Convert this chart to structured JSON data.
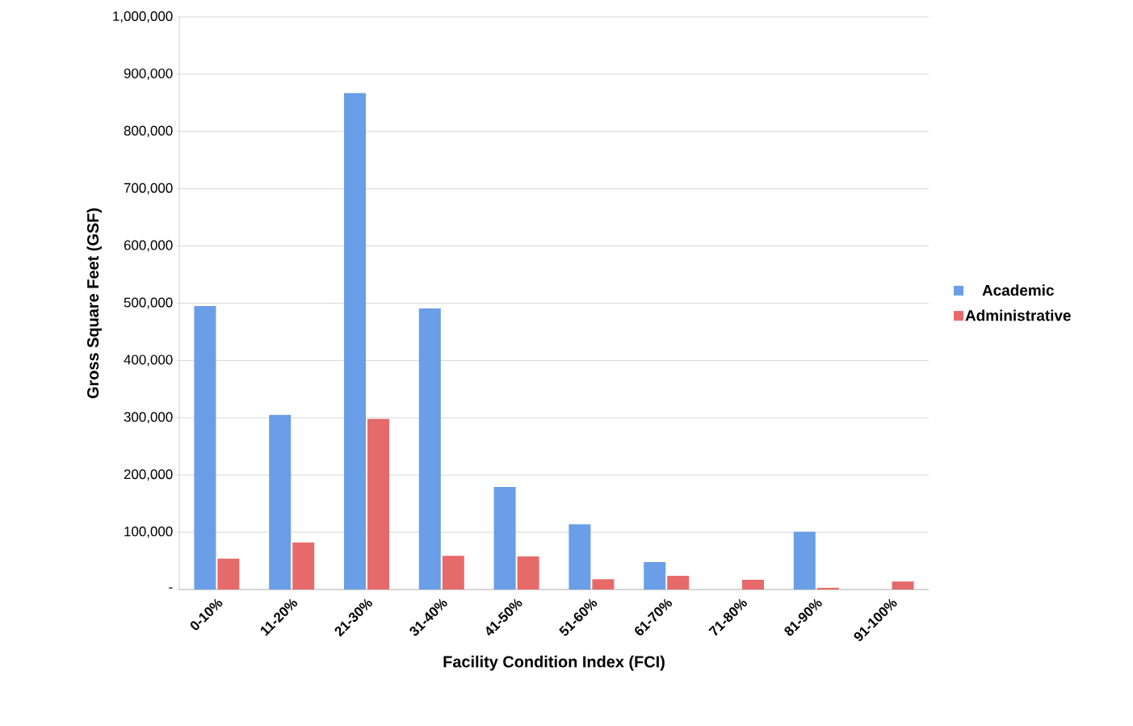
{
  "chart_data": {
    "type": "bar",
    "xlabel": "Facility Condition Index (FCI)",
    "ylabel": "Gross Square Feet (GSF)",
    "categories": [
      "0-10%",
      "11-20%",
      "21-30%",
      "31-40%",
      "41-50%",
      "51-60%",
      "61-70%",
      "71-80%",
      "81-90%",
      "91-100%"
    ],
    "series": [
      {
        "name": "Academic",
        "color": "#6a9ee6",
        "values": [
          495000,
          305000,
          867000,
          491000,
          179000,
          114000,
          48000,
          0,
          101000,
          0
        ]
      },
      {
        "name": "Administrative",
        "color": "#e76a6a",
        "values": [
          54000,
          82000,
          298000,
          59000,
          58000,
          18000,
          24000,
          17000,
          3000,
          14000
        ]
      }
    ],
    "ylim": [
      0,
      1000000
    ],
    "yticks": [
      {
        "value": 0,
        "label": "-"
      },
      {
        "value": 100000,
        "label": "100,000"
      },
      {
        "value": 200000,
        "label": "200,000"
      },
      {
        "value": 300000,
        "label": "300,000"
      },
      {
        "value": 400000,
        "label": "400,000"
      },
      {
        "value": 500000,
        "label": "500,000"
      },
      {
        "value": 600000,
        "label": "600,000"
      },
      {
        "value": 700000,
        "label": "700,000"
      },
      {
        "value": 800000,
        "label": "800,000"
      },
      {
        "value": 900000,
        "label": "900,000"
      },
      {
        "value": 1000000,
        "label": "1,000,000"
      }
    ],
    "grid": "y",
    "legend": "right"
  }
}
